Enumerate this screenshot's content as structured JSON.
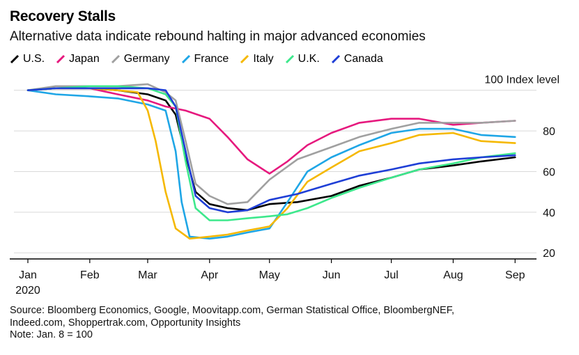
{
  "header": {
    "title": "Recovery Stalls",
    "subtitle": "Alternative data indicate rebound halting in major advanced economies"
  },
  "footer": {
    "source_line1": "Source: Bloomberg Economics, Google, Moovitapp.com, German Statistical Office, BloombergNEF,",
    "source_line2": "Indeed.com, Shoppertrak.com, Opportunity Insights",
    "note": "Note: Jan. 8 = 100"
  },
  "chart_data": {
    "type": "line",
    "title": "Recovery Stalls",
    "subtitle": "Alternative data indicate rebound halting in major advanced economies",
    "ylabel": "100 Index level",
    "year_label": "2020",
    "y_ticks": [
      "20",
      "40",
      "60",
      "80"
    ],
    "y_tick_values": [
      20,
      40,
      60,
      80
    ],
    "ylim": [
      17,
      104
    ],
    "x_ticks": [
      "Jan",
      "Feb",
      "Mar",
      "Apr",
      "May",
      "Jun",
      "Jul",
      "Aug",
      "Sep"
    ],
    "x_tick_dates": [
      "2020-01-01",
      "2020-02-01",
      "2020-03-01",
      "2020-04-01",
      "2020-05-01",
      "2020-06-01",
      "2020-07-01",
      "2020-08-01",
      "2020-09-01"
    ],
    "xlim": [
      "2020-01-01",
      "2020-09-03"
    ],
    "grid": true,
    "legend_position": "top-left",
    "series": [
      {
        "name": "U.S.",
        "color": "#000000",
        "x": [
          "2020-01-01",
          "2020-01-15",
          "2020-02-01",
          "2020-02-15",
          "2020-03-01",
          "2020-03-10",
          "2020-03-15",
          "2020-03-20",
          "2020-03-25",
          "2020-04-01",
          "2020-04-10",
          "2020-04-20",
          "2020-05-01",
          "2020-05-15",
          "2020-06-01",
          "2020-06-15",
          "2020-07-01",
          "2020-07-15",
          "2020-08-01",
          "2020-08-15",
          "2020-09-01"
        ],
        "values": [
          100,
          101,
          101,
          100,
          98,
          95,
          88,
          68,
          50,
          44,
          42,
          41,
          44,
          45,
          48,
          53,
          57,
          61,
          63,
          65,
          67
        ]
      },
      {
        "name": "Japan",
        "color": "#E6197E",
        "x": [
          "2020-01-01",
          "2020-01-15",
          "2020-02-01",
          "2020-02-15",
          "2020-03-01",
          "2020-03-10",
          "2020-03-20",
          "2020-04-01",
          "2020-04-10",
          "2020-04-20",
          "2020-05-01",
          "2020-05-10",
          "2020-05-20",
          "2020-06-01",
          "2020-06-15",
          "2020-07-01",
          "2020-07-15",
          "2020-08-01",
          "2020-08-15",
          "2020-09-01"
        ],
        "values": [
          100,
          101,
          101,
          98,
          95,
          92,
          90,
          86,
          77,
          66,
          59,
          65,
          73,
          79,
          84,
          86,
          86,
          83,
          84,
          85
        ]
      },
      {
        "name": "Germany",
        "color": "#A0A0A0",
        "x": [
          "2020-01-01",
          "2020-01-15",
          "2020-02-01",
          "2020-02-15",
          "2020-03-01",
          "2020-03-10",
          "2020-03-15",
          "2020-03-20",
          "2020-03-25",
          "2020-04-01",
          "2020-04-10",
          "2020-04-20",
          "2020-05-01",
          "2020-05-15",
          "2020-06-01",
          "2020-06-15",
          "2020-07-01",
          "2020-07-15",
          "2020-08-01",
          "2020-08-15",
          "2020-09-01"
        ],
        "values": [
          100,
          102,
          102,
          102,
          103,
          99,
          95,
          75,
          54,
          48,
          44,
          45,
          56,
          66,
          72,
          77,
          81,
          84,
          84,
          84,
          85
        ]
      },
      {
        "name": "France",
        "color": "#1FA6E6",
        "x": [
          "2020-01-01",
          "2020-01-15",
          "2020-02-01",
          "2020-02-15",
          "2020-03-01",
          "2020-03-10",
          "2020-03-15",
          "2020-03-18",
          "2020-03-22",
          "2020-04-01",
          "2020-04-10",
          "2020-04-20",
          "2020-05-01",
          "2020-05-10",
          "2020-05-20",
          "2020-06-01",
          "2020-06-15",
          "2020-07-01",
          "2020-07-15",
          "2020-08-01",
          "2020-08-15",
          "2020-09-01"
        ],
        "values": [
          100,
          98,
          97,
          96,
          93,
          90,
          70,
          45,
          28,
          27,
          28,
          30,
          32,
          45,
          60,
          67,
          73,
          79,
          81,
          81,
          78,
          77
        ]
      },
      {
        "name": "Italy",
        "color": "#F5B800",
        "x": [
          "2020-01-01",
          "2020-01-15",
          "2020-02-01",
          "2020-02-15",
          "2020-02-25",
          "2020-03-01",
          "2020-03-05",
          "2020-03-10",
          "2020-03-15",
          "2020-03-22",
          "2020-04-01",
          "2020-04-10",
          "2020-04-20",
          "2020-05-01",
          "2020-05-10",
          "2020-05-20",
          "2020-06-01",
          "2020-06-15",
          "2020-07-01",
          "2020-07-15",
          "2020-08-01",
          "2020-08-15",
          "2020-09-01"
        ],
        "values": [
          100,
          101,
          101,
          100,
          99,
          90,
          75,
          50,
          32,
          27,
          28,
          29,
          31,
          33,
          42,
          55,
          62,
          70,
          74,
          78,
          79,
          75,
          74
        ]
      },
      {
        "name": "U.K.",
        "color": "#3DE88C",
        "x": [
          "2020-01-01",
          "2020-01-15",
          "2020-02-01",
          "2020-02-15",
          "2020-03-01",
          "2020-03-10",
          "2020-03-15",
          "2020-03-20",
          "2020-03-25",
          "2020-04-01",
          "2020-04-10",
          "2020-04-20",
          "2020-05-01",
          "2020-05-10",
          "2020-05-20",
          "2020-06-01",
          "2020-06-15",
          "2020-07-01",
          "2020-07-15",
          "2020-08-01",
          "2020-08-15",
          "2020-09-01"
        ],
        "values": [
          100,
          101,
          102,
          102,
          101,
          98,
          92,
          65,
          42,
          36,
          36,
          37,
          38,
          39,
          42,
          47,
          52,
          57,
          61,
          64,
          67,
          69
        ]
      },
      {
        "name": "Canada",
        "color": "#1F3FD6",
        "x": [
          "2020-01-01",
          "2020-01-15",
          "2020-02-01",
          "2020-02-15",
          "2020-03-01",
          "2020-03-10",
          "2020-03-15",
          "2020-03-20",
          "2020-03-25",
          "2020-04-01",
          "2020-04-10",
          "2020-04-20",
          "2020-05-01",
          "2020-05-15",
          "2020-06-01",
          "2020-06-15",
          "2020-07-01",
          "2020-07-15",
          "2020-08-01",
          "2020-08-15",
          "2020-09-01"
        ],
        "values": [
          100,
          101,
          101,
          101,
          101,
          100,
          92,
          70,
          48,
          42,
          40,
          41,
          46,
          49,
          54,
          58,
          61,
          64,
          66,
          67,
          68
        ]
      }
    ]
  }
}
